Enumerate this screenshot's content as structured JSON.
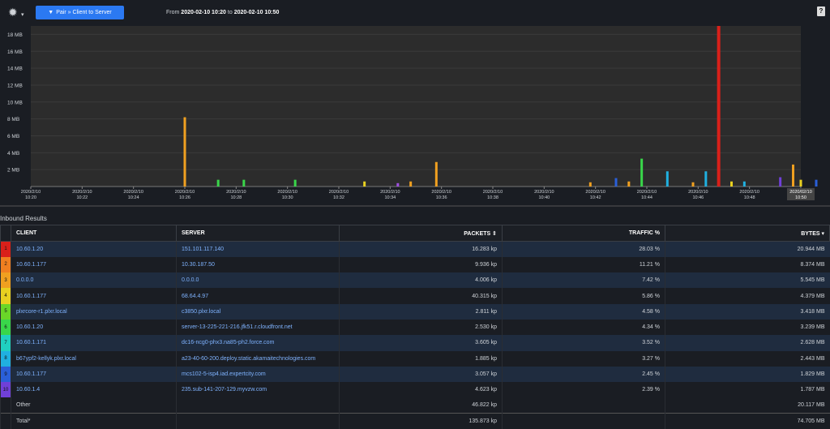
{
  "toolbar": {
    "gear_icon": "gear-icon",
    "pair_button": "Pair » Client to Server",
    "range_from_label": "From",
    "range_from": "2020-02-10 10:20",
    "range_to_label": "to",
    "range_to": "2020-02-10 10:50",
    "help": "?"
  },
  "chart_data": {
    "type": "bar",
    "ylabel": "",
    "ylim": [
      0,
      19
    ],
    "yticks": [
      "2 MB",
      "4 MB",
      "6 MB",
      "8 MB",
      "10 MB",
      "12 MB",
      "14 MB",
      "16 MB",
      "18 MB"
    ],
    "xtick_dates": [
      "2020/2/10",
      "2020/2/10",
      "2020/2/10",
      "2020/2/10",
      "2020/2/10",
      "2020/2/10",
      "2020/2/10",
      "2020/2/10",
      "2020/2/10",
      "2020/2/10",
      "2020/2/10",
      "2020/2/10",
      "2020/2/10",
      "2020/2/10",
      "2020/2/10",
      "2020/02/10"
    ],
    "xtick_times": [
      "10:20",
      "10:22",
      "10:24",
      "10:26",
      "10:28",
      "10:30",
      "10:32",
      "10:34",
      "10:36",
      "10:38",
      "10:40",
      "10:42",
      "10:44",
      "10:46",
      "10:48",
      "10:50"
    ],
    "xlim": [
      0,
      30
    ],
    "bars": [
      {
        "minute": 6.0,
        "value": 8.2,
        "color": "#f0a020"
      },
      {
        "minute": 7.3,
        "value": 0.8,
        "color": "#39d64a"
      },
      {
        "minute": 8.3,
        "value": 0.8,
        "color": "#39d64a"
      },
      {
        "minute": 10.3,
        "value": 0.8,
        "color": "#39d64a"
      },
      {
        "minute": 13.0,
        "value": 0.6,
        "color": "#e8d020"
      },
      {
        "minute": 14.3,
        "value": 0.4,
        "color": "#a050e0"
      },
      {
        "minute": 14.8,
        "value": 0.6,
        "color": "#f0a020"
      },
      {
        "minute": 15.8,
        "value": 2.9,
        "color": "#f0a020"
      },
      {
        "minute": 21.8,
        "value": 0.5,
        "color": "#f0a020"
      },
      {
        "minute": 22.8,
        "value": 1.0,
        "color": "#2a5fd8"
      },
      {
        "minute": 23.3,
        "value": 0.6,
        "color": "#f0a020"
      },
      {
        "minute": 23.8,
        "value": 3.3,
        "color": "#39d64a"
      },
      {
        "minute": 24.8,
        "value": 1.8,
        "color": "#20b0e0"
      },
      {
        "minute": 25.8,
        "value": 0.5,
        "color": "#f0a020"
      },
      {
        "minute": 26.3,
        "value": 1.8,
        "color": "#20b0e0"
      },
      {
        "minute": 26.8,
        "value": 19.0,
        "color": "#d9201a"
      },
      {
        "minute": 27.3,
        "value": 0.6,
        "color": "#e8d020"
      },
      {
        "minute": 27.8,
        "value": 0.6,
        "color": "#20b0e0"
      },
      {
        "minute": 29.2,
        "value": 1.1,
        "color": "#7040d8"
      },
      {
        "minute": 29.7,
        "value": 2.6,
        "color": "#f0a020"
      },
      {
        "minute": 30.0,
        "value": 0.8,
        "color": "#e8d020"
      },
      {
        "minute": 30.6,
        "value": 0.8,
        "color": "#2a5fd8"
      }
    ]
  },
  "results": {
    "title": "Inbound Results",
    "columns": {
      "client": "CLIENT",
      "server": "SERVER",
      "packets": "PACKETS ⇕",
      "traffic": "TRAFFIC %",
      "bytes": "BYTES ▾"
    },
    "rows": [
      {
        "n": "1",
        "color": "#d9201a",
        "client": "10.60.1.20",
        "server": "151.101.117.140",
        "packets": "16.283 kp",
        "traffic": "28.03 %",
        "bytes": "20.944 MB"
      },
      {
        "n": "2",
        "color": "#f07f20",
        "client": "10.60.1.177",
        "server": "10.30.187.50",
        "packets": "9.936 kp",
        "traffic": "11.21 %",
        "bytes": "8.374 MB"
      },
      {
        "n": "3",
        "color": "#f0a020",
        "client": "0.0.0.0",
        "server": "0.0.0.0",
        "packets": "4.006 kp",
        "traffic": "7.42 %",
        "bytes": "5.545 MB"
      },
      {
        "n": "4",
        "color": "#e8d020",
        "client": "10.60.1.177",
        "server": "68.64.4.97",
        "packets": "40.315 kp",
        "traffic": "5.86 %",
        "bytes": "4.379 MB"
      },
      {
        "n": "5",
        "color": "#6ad628",
        "client": "plxrcore-r1.plxr.local",
        "server": "c3850.plxr.local",
        "packets": "2.811 kp",
        "traffic": "4.58 %",
        "bytes": "3.418 MB"
      },
      {
        "n": "6",
        "color": "#39d64a",
        "client": "10.60.1.20",
        "server": "server-13-225-221-216.jfk51.r.cloudfront.net",
        "packets": "2.530 kp",
        "traffic": "4.34 %",
        "bytes": "3.239 MB"
      },
      {
        "n": "7",
        "color": "#20d0c0",
        "client": "10.60.1.171",
        "server": "dc16-ncg0-phx3.na85-ph2.force.com",
        "packets": "3.605 kp",
        "traffic": "3.52 %",
        "bytes": "2.628 MB"
      },
      {
        "n": "8",
        "color": "#20b0e0",
        "client": "b67ypf2-kellyk.plxr.local",
        "server": "a23-40-60-200.deploy.static.akamaitechnologies.com",
        "packets": "1.885 kp",
        "traffic": "3.27 %",
        "bytes": "2.443 MB"
      },
      {
        "n": "9",
        "color": "#2a5fd8",
        "client": "10.60.1.177",
        "server": "mcs102-5-isp4.iad.expertcity.com",
        "packets": "3.057 kp",
        "traffic": "2.45 %",
        "bytes": "1.829 MB"
      },
      {
        "n": "10",
        "color": "#7040d8",
        "client": "10.60.1.4",
        "server": "235.sub-141-207-129.myvzw.com",
        "packets": "4.623 kp",
        "traffic": "2.39 %",
        "bytes": "1.787 MB"
      }
    ],
    "other": {
      "label": "Other",
      "packets": "46.822 kp",
      "bytes": "20.117 MB"
    },
    "total": {
      "label": "Total*",
      "packets": "135.873 kp",
      "bytes": "74.705 MB"
    }
  }
}
